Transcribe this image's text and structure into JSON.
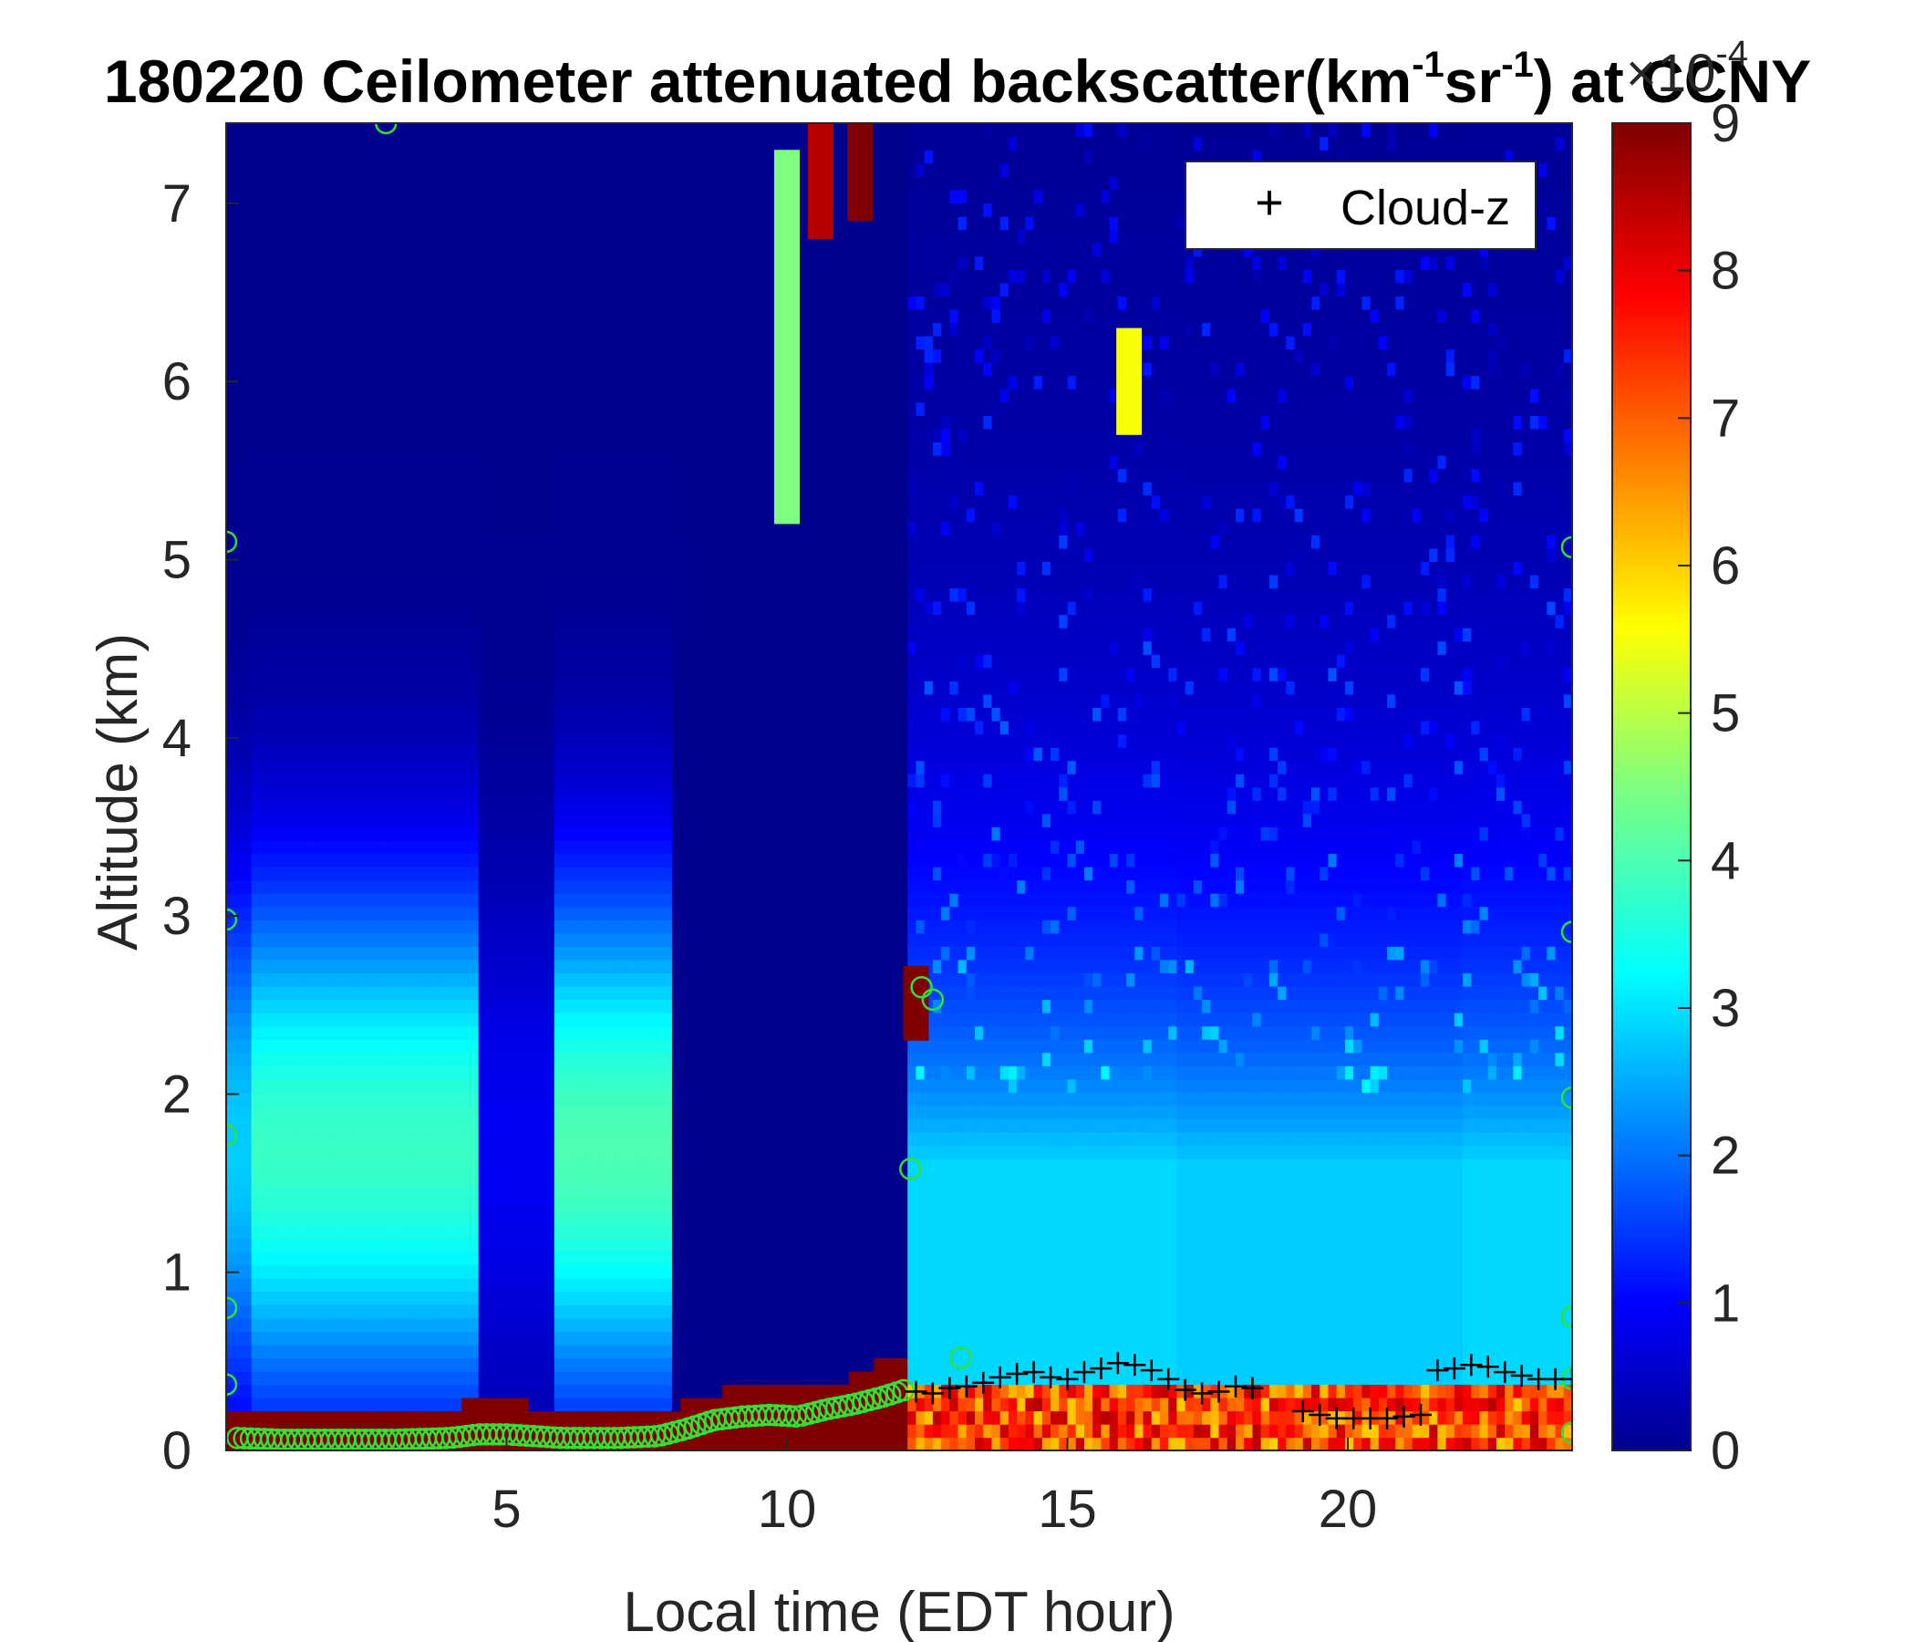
{
  "chart_data": {
    "type": "heatmap",
    "title": {
      "pre": "180220 Ceilometer attenuated backscatter(km",
      "sup1": "-1",
      "mid": "sr",
      "sup2": "-1",
      "post": ") at CCNY"
    },
    "xlabel": "Local time (EDT hour)",
    "ylabel": "Altitude (km)",
    "xlim": [
      0,
      24
    ],
    "ylim": [
      0,
      7.45
    ],
    "xticks": [
      5,
      10,
      15,
      20
    ],
    "yticks": [
      0,
      1,
      2,
      3,
      4,
      5,
      6,
      7
    ],
    "colorbar": {
      "range": [
        0,
        9
      ],
      "ticks": [
        0,
        1,
        2,
        3,
        4,
        5,
        6,
        7,
        8,
        9
      ],
      "multiplier_base": "×10",
      "multiplier_exp": "-4",
      "colormap": "jet"
    },
    "legend": {
      "position": "top-right",
      "entries": [
        {
          "marker": "+",
          "label": "Cloud-z"
        }
      ]
    },
    "background_by_hour": [
      {
        "start": 0.0,
        "end": 0.4,
        "peak": 2.8
      },
      {
        "start": 0.4,
        "end": 4.5,
        "peak": 3.8
      },
      {
        "start": 4.5,
        "end": 5.8,
        "peak": 0.9
      },
      {
        "start": 5.8,
        "end": 8.0,
        "peak": 4.0
      },
      {
        "start": 8.0,
        "end": 12.2,
        "peak": 0.0
      },
      {
        "start": 12.2,
        "end": 17.0,
        "peak": 2.9
      },
      {
        "start": 17.0,
        "end": 22.0,
        "peak": 2.8
      },
      {
        "start": 22.0,
        "end": 24.0,
        "peak": 2.9
      }
    ],
    "surface_layer": {
      "x": [
        0,
        1,
        2,
        3,
        4,
        4.6,
        5,
        6,
        7,
        8,
        8.5,
        9,
        10,
        11,
        11.5,
        12,
        12.2
      ],
      "top_km": [
        0.25,
        0.23,
        0.23,
        0.23,
        0.24,
        0.3,
        0.27,
        0.25,
        0.24,
        0.24,
        0.3,
        0.35,
        0.36,
        0.4,
        0.48,
        0.5,
        0.5
      ]
    },
    "boundary_layer_height": {
      "x": [
        0.2,
        1,
        2,
        3,
        4,
        4.5,
        5,
        6,
        7,
        7.7,
        8.2,
        8.7,
        9.2,
        9.7,
        10.2,
        10.7,
        11.2,
        11.7,
        12.1
      ],
      "y": [
        0.07,
        0.06,
        0.06,
        0.06,
        0.07,
        0.09,
        0.09,
        0.07,
        0.07,
        0.08,
        0.12,
        0.17,
        0.19,
        0.2,
        0.19,
        0.23,
        0.26,
        0.3,
        0.34
      ]
    },
    "boundary_layer_outliers": {
      "x": [
        2.85,
        0.0,
        0.0,
        0.0,
        0.0,
        0.0,
        12.2,
        12.4,
        12.6,
        13.1,
        24.0,
        24.0,
        24.0,
        24.0,
        24.0,
        24.0
      ],
      "y": [
        7.45,
        5.1,
        2.98,
        1.77,
        0.8,
        0.37,
        1.58,
        2.6,
        2.53,
        0.52,
        5.07,
        2.91,
        1.98,
        0.75,
        0.4,
        0.1
      ]
    },
    "cloud_z": {
      "x": [
        12.3,
        12.6,
        12.9,
        13.2,
        13.5,
        13.8,
        14.1,
        14.4,
        14.7,
        15.0,
        15.3,
        15.6,
        15.9,
        16.2,
        16.5,
        16.8,
        17.1,
        17.4,
        17.7,
        18.0,
        18.3,
        19.2,
        19.5,
        19.8,
        20.1,
        20.4,
        20.7,
        21.0,
        21.3,
        21.6,
        21.9,
        22.2,
        22.5,
        22.8,
        23.1,
        23.4,
        23.7,
        24.0
      ],
      "y": [
        0.33,
        0.32,
        0.35,
        0.36,
        0.38,
        0.41,
        0.43,
        0.44,
        0.41,
        0.4,
        0.44,
        0.46,
        0.49,
        0.48,
        0.45,
        0.4,
        0.34,
        0.32,
        0.33,
        0.36,
        0.35,
        0.22,
        0.2,
        0.18,
        0.18,
        0.18,
        0.18,
        0.19,
        0.2,
        0.45,
        0.46,
        0.48,
        0.47,
        0.44,
        0.42,
        0.4,
        0.4,
        0.4
      ]
    },
    "upper_features": [
      {
        "x": 10.6,
        "y1": 7.45,
        "y2": 6.8,
        "value": 8.5
      },
      {
        "x": 11.3,
        "y1": 7.45,
        "y2": 6.9,
        "value": 9.0
      },
      {
        "x": 12.3,
        "y1": 2.72,
        "y2": 2.3,
        "value": 9.0
      },
      {
        "x": 16.1,
        "y1": 6.3,
        "y2": 5.7,
        "value": 5.5
      },
      {
        "x": 10.0,
        "y1": 7.3,
        "y2": 5.2,
        "value": 4.5
      }
    ]
  }
}
